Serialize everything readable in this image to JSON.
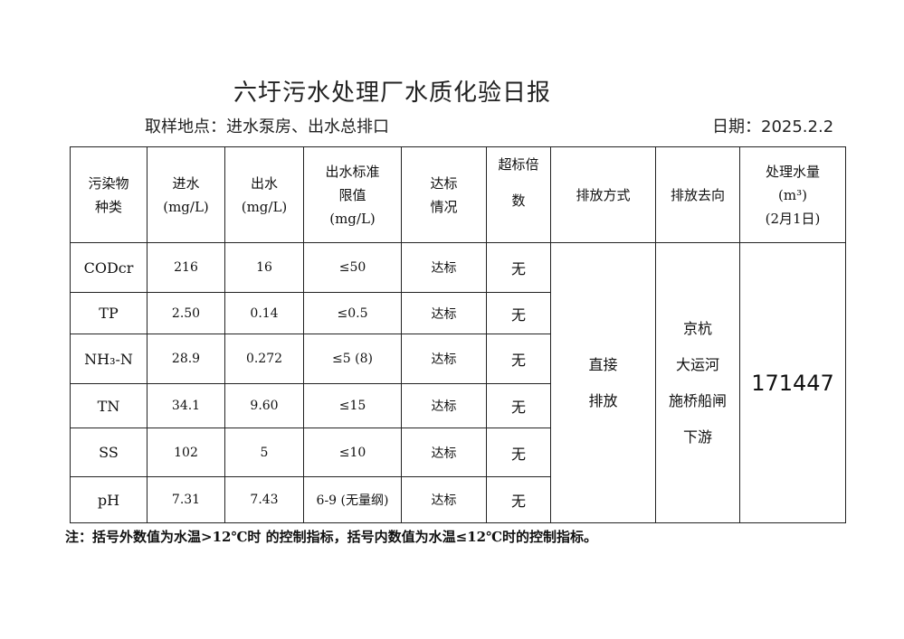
{
  "title": "六圩污水处理厂水质化验日报",
  "sampling_site": "取样地点：进水泵房、出水总排口",
  "date": "日期：2025.2.2",
  "headers": {
    "pollutant": [
      "污染物",
      "种类"
    ],
    "influent": [
      "进水",
      "(mg/L)"
    ],
    "effluent": [
      "出水",
      "(mg/L)"
    ],
    "limit": [
      "出水标准",
      "限值",
      "(mg/L)"
    ],
    "compliance": [
      "达标",
      "情况"
    ],
    "exceed": [
      "超标倍",
      "数"
    ],
    "discharge_mode": "排放方式",
    "discharge_dest": "排放去向",
    "volume": [
      "处理水量",
      "(m³)",
      "(2月1日)"
    ]
  },
  "rows": [
    {
      "name": "CODcr",
      "in": "216",
      "out": "16",
      "limit": "≤50",
      "status": "达标",
      "exceed": "无"
    },
    {
      "name": "TP",
      "in": "2.50",
      "out": "0.14",
      "limit": "≤0.5",
      "status": "达标",
      "exceed": "无"
    },
    {
      "name": "NH₃-N",
      "in": "28.9",
      "out": "0.272",
      "limit": "≤5 (8)",
      "status": "达标",
      "exceed": "无"
    },
    {
      "name": "TN",
      "in": "34.1",
      "out": "9.60",
      "limit": "≤15",
      "status": "达标",
      "exceed": "无"
    },
    {
      "name": "SS",
      "in": "102",
      "out": "5",
      "limit": "≤10",
      "status": "达标",
      "exceed": "无"
    },
    {
      "name": "pH",
      "in": "7.31",
      "out": "7.43",
      "limit": "6-9 (无量纲)",
      "status": "达标",
      "exceed": "无"
    }
  ],
  "discharge_mode": [
    "直接",
    "排放"
  ],
  "discharge_dest": [
    "京杭",
    "大运河",
    "施桥船闸",
    "下游"
  ],
  "volume": "171447",
  "note": "注：括号外数值为水温>12℃时 的控制指标，括号内数值为水温≤12℃时的控制指标。"
}
